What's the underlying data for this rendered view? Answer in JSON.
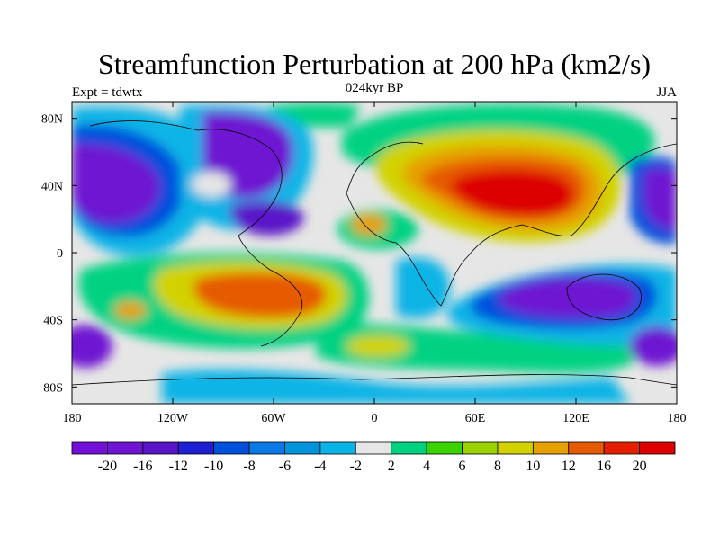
{
  "chart_data": {
    "type": "heatmap",
    "title": "Streamfunction Perturbation at 200 hPa (km2/s)",
    "left_label": "Expt = tdwtx",
    "center_label": "024kyr BP",
    "right_label": "JJA",
    "x_ticks": [
      "180",
      "120W",
      "60W",
      "0",
      "60E",
      "120E",
      "180"
    ],
    "x_tick_values": [
      -180,
      -120,
      -60,
      0,
      60,
      120,
      180
    ],
    "y_ticks": [
      "80N",
      "40N",
      "0",
      "40S",
      "80S"
    ],
    "y_tick_values": [
      80,
      40,
      0,
      -40,
      -80
    ],
    "xlim": [
      -180,
      180
    ],
    "ylim": [
      -90,
      90
    ],
    "colorbar": {
      "labels": [
        "-20",
        "-16",
        "-12",
        "-10",
        "-8",
        "-6",
        "-4",
        "-2",
        "2",
        "4",
        "6",
        "8",
        "10",
        "12",
        "16",
        "20"
      ],
      "colors": [
        "#7310d8",
        "#6e14d2",
        "#5a14c8",
        "#1e1ed2",
        "#0050dc",
        "#0a78e6",
        "#0094dc",
        "#0ab4e6",
        "#e6e6e6",
        "#00d282",
        "#3cd200",
        "#9ad200",
        "#d2d200",
        "#e6a000",
        "#e65a00",
        "#e61e00",
        "#dc0000"
      ]
    },
    "features": [
      {
        "name": "central-asia-high",
        "lon": 75,
        "lat": 35,
        "rx": 45,
        "ry": 22,
        "value": 22
      },
      {
        "name": "south-america-high",
        "lon": -60,
        "lat": -20,
        "rx": 30,
        "ry": 12,
        "value": 16
      },
      {
        "name": "north-pacific-low",
        "lon": -150,
        "lat": 40,
        "rx": 35,
        "ry": 22,
        "value": -20
      },
      {
        "name": "north-america-low",
        "lon": -90,
        "lat": 60,
        "rx": 30,
        "ry": 22,
        "value": -20
      },
      {
        "name": "australia-low",
        "lon": 115,
        "lat": -30,
        "rx": 35,
        "ry": 16,
        "value": -20
      },
      {
        "name": "south-indian-low",
        "lon": 60,
        "lat": -35,
        "rx": 25,
        "ry": 10,
        "value": -8
      }
    ]
  }
}
